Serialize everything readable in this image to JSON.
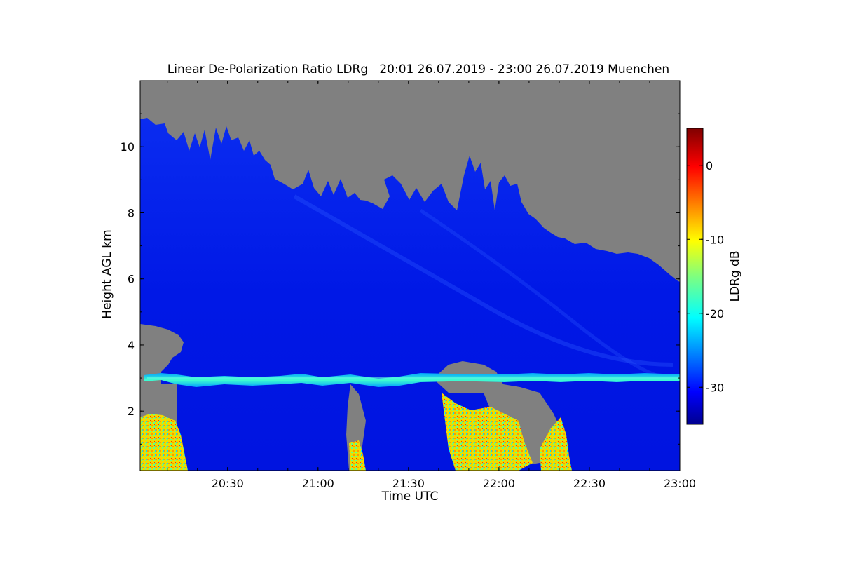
{
  "chart_data": {
    "type": "heatmap",
    "title": "Linear De-Polarization Ratio LDRg   20:01 26.07.2019 - 23:00 26.07.2019 Muenchen",
    "xlabel": "Time UTC",
    "ylabel": "Height AGL km",
    "colorbar_label": "LDRg dB",
    "xlim": [
      "20:01",
      "23:00"
    ],
    "ylim": [
      0.2,
      12
    ],
    "x_ticks": [
      "20:30",
      "21:00",
      "21:30",
      "22:00",
      "22:30",
      "23:00"
    ],
    "y_ticks": [
      2,
      4,
      6,
      8,
      10
    ],
    "colorbar_ticks": [
      0,
      -10,
      -20,
      -30
    ],
    "colorbar_range": [
      -35,
      5
    ],
    "colormap": "jet",
    "no_data_color": "#808080",
    "features": {
      "melting_layer_height_km": 3.0,
      "melting_layer_ldr_db": -20,
      "background_ldr_db": -30,
      "rain_ldr_db": -10
    }
  }
}
